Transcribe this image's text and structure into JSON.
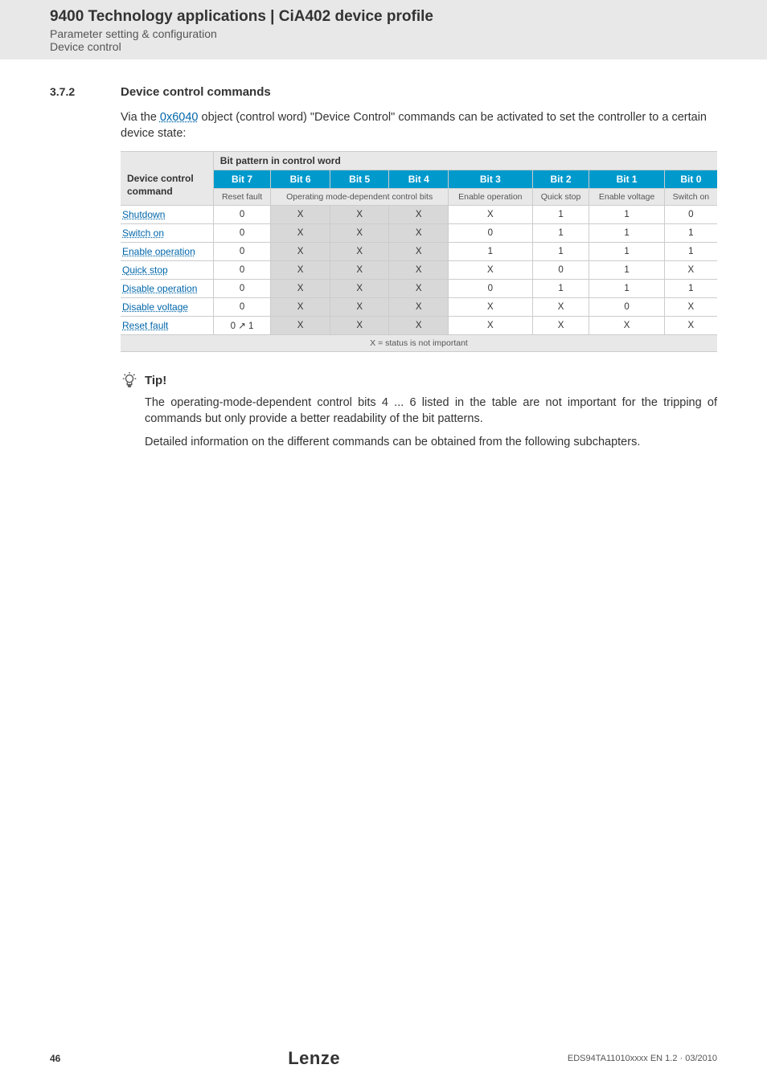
{
  "header": {
    "title": "9400 Technology applications | CiA402 device profile",
    "sub1": "Parameter setting & configuration",
    "sub2": "Device control"
  },
  "section": {
    "num": "3.7.2",
    "title": "Device control commands"
  },
  "intro": {
    "pre": "Via the ",
    "link": "0x6040",
    "post": " object (control word) \"Device Control\" commands can be activated to set the controller to a certain device state:"
  },
  "table": {
    "top_right_header": "Bit pattern in control word",
    "left_header_l1": "Device control",
    "left_header_l2": "command",
    "bits": [
      "Bit 7",
      "Bit 6",
      "Bit 5",
      "Bit 4",
      "Bit 3",
      "Bit 2",
      "Bit 1",
      "Bit 0"
    ],
    "subheads": {
      "reset_fault": "Reset fault",
      "op_mode": "Operating mode-dependent control bits",
      "enable_op": "Enable operation",
      "quick_stop": "Quick stop",
      "enable_volt": "Enable voltage",
      "switch_on": "Switch on"
    },
    "rows": [
      {
        "label": "Shutdown",
        "cells": [
          "0",
          "X",
          "X",
          "X",
          "X",
          "1",
          "1",
          "0"
        ]
      },
      {
        "label": "Switch on",
        "cells": [
          "0",
          "X",
          "X",
          "X",
          "0",
          "1",
          "1",
          "1"
        ]
      },
      {
        "label": "Enable operation",
        "cells": [
          "0",
          "X",
          "X",
          "X",
          "1",
          "1",
          "1",
          "1"
        ]
      },
      {
        "label": "Quick stop",
        "cells": [
          "0",
          "X",
          "X",
          "X",
          "X",
          "0",
          "1",
          "X"
        ]
      },
      {
        "label": "Disable operation",
        "cells": [
          "0",
          "X",
          "X",
          "X",
          "0",
          "1",
          "1",
          "1"
        ]
      },
      {
        "label": "Disable voltage",
        "cells": [
          "0",
          "X",
          "X",
          "X",
          "X",
          "X",
          "0",
          "X"
        ]
      },
      {
        "label": "Reset fault",
        "cells": [
          "0 ↗ 1",
          "X",
          "X",
          "X",
          "X",
          "X",
          "X",
          "X"
        ]
      }
    ],
    "footnote": "X = status is not important"
  },
  "tip": {
    "label": "Tip!",
    "p1": "The operating-mode-dependent control bits 4 ... 6 listed in the table are not important for the tripping of commands but only provide a better readability of the bit patterns.",
    "p2": "Detailed information on the different commands can be obtained from the following subchapters."
  },
  "footer": {
    "page": "46",
    "brand": "Lenze",
    "docref": "EDS94TA11010xxxx EN 1.2 · 03/2010"
  },
  "colors": {
    "blue_header": "#0099cc",
    "gray_bg": "#e8e8e8",
    "cell_dark": "#d8d8d8",
    "link": "#0066aa"
  }
}
